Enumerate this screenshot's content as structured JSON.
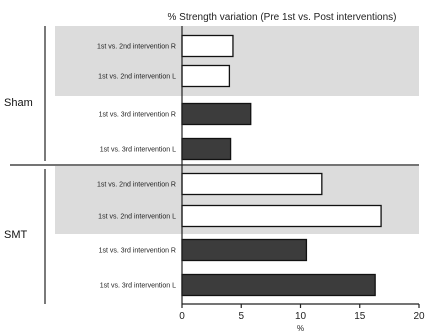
{
  "chart_data": {
    "type": "bar",
    "orientation": "horizontal",
    "title": "% Strength variation (Pre 1st vs. Post interventions)",
    "xlabel": "%",
    "xlim": [
      0,
      20
    ],
    "xticks": [
      0,
      5,
      10,
      15,
      20
    ],
    "grid": false,
    "groups": [
      {
        "name": "Sham",
        "bars": [
          {
            "label": "1st vs. 2nd intervention R",
            "value": 4.3,
            "style": "open"
          },
          {
            "label": "1st vs. 2nd intervention L",
            "value": 4.0,
            "style": "open"
          },
          {
            "label": "1st vs. 3rd intervention R",
            "value": 5.8,
            "style": "filled"
          },
          {
            "label": "1st vs. 3rd intervention L",
            "value": 4.1,
            "style": "filled"
          }
        ]
      },
      {
        "name": "SMT",
        "bars": [
          {
            "label": "1st vs. 2nd intervention R",
            "value": 11.8,
            "style": "open"
          },
          {
            "label": "1st vs. 2nd intervention L",
            "value": 16.8,
            "style": "open"
          },
          {
            "label": "1st vs. 3rd intervention R",
            "value": 10.5,
            "style": "filled"
          },
          {
            "label": "1st vs. 3rd intervention L",
            "value": 16.3,
            "style": "filled"
          }
        ]
      }
    ],
    "colors": {
      "open_fill": "#ffffff",
      "filled_fill": "#3c3c3c",
      "bar_stroke": "#111111",
      "shade": "#dcdcdc"
    }
  }
}
